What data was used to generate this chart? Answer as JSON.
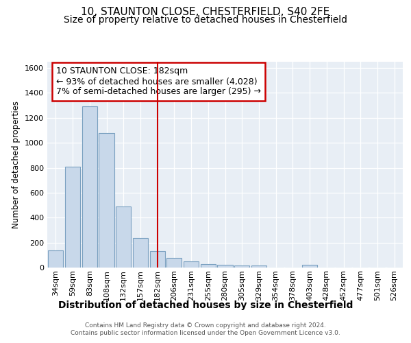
{
  "title1": "10, STAUNTON CLOSE, CHESTERFIELD, S40 2FE",
  "title2": "Size of property relative to detached houses in Chesterfield",
  "xlabel": "Distribution of detached houses by size in Chesterfield",
  "ylabel": "Number of detached properties",
  "footer1": "Contains HM Land Registry data © Crown copyright and database right 2024.",
  "footer2": "Contains public sector information licensed under the Open Government Licence v3.0.",
  "annotation_line1": "10 STAUNTON CLOSE: 182sqm",
  "annotation_line2": "← 93% of detached houses are smaller (4,028)",
  "annotation_line3": "7% of semi-detached houses are larger (295) →",
  "bar_labels": [
    "34sqm",
    "59sqm",
    "83sqm",
    "108sqm",
    "132sqm",
    "157sqm",
    "182sqm",
    "206sqm",
    "231sqm",
    "255sqm",
    "280sqm",
    "305sqm",
    "329sqm",
    "354sqm",
    "378sqm",
    "403sqm",
    "428sqm",
    "452sqm",
    "477sqm",
    "501sqm",
    "526sqm"
  ],
  "bar_values": [
    140,
    810,
    1295,
    1080,
    490,
    235,
    130,
    75,
    50,
    30,
    20,
    15,
    15,
    0,
    0,
    20,
    0,
    0,
    0,
    0,
    0
  ],
  "bar_color": "#c8d8ea",
  "bar_edge_color": "#7aa0c0",
  "red_line_index": 6,
  "ylim": [
    0,
    1650
  ],
  "yticks": [
    0,
    200,
    400,
    600,
    800,
    1000,
    1200,
    1400,
    1600
  ],
  "fig_bg_color": "#ffffff",
  "plot_bg_color": "#e8eef5",
  "grid_color": "#ffffff",
  "title1_fontsize": 11,
  "title2_fontsize": 10,
  "xlabel_fontsize": 10,
  "ylabel_fontsize": 8.5,
  "annotation_fontsize": 9,
  "tick_fontsize": 8,
  "footer_fontsize": 6.5,
  "annotation_box_color": "#ffffff",
  "annotation_box_edge": "#cc0000"
}
